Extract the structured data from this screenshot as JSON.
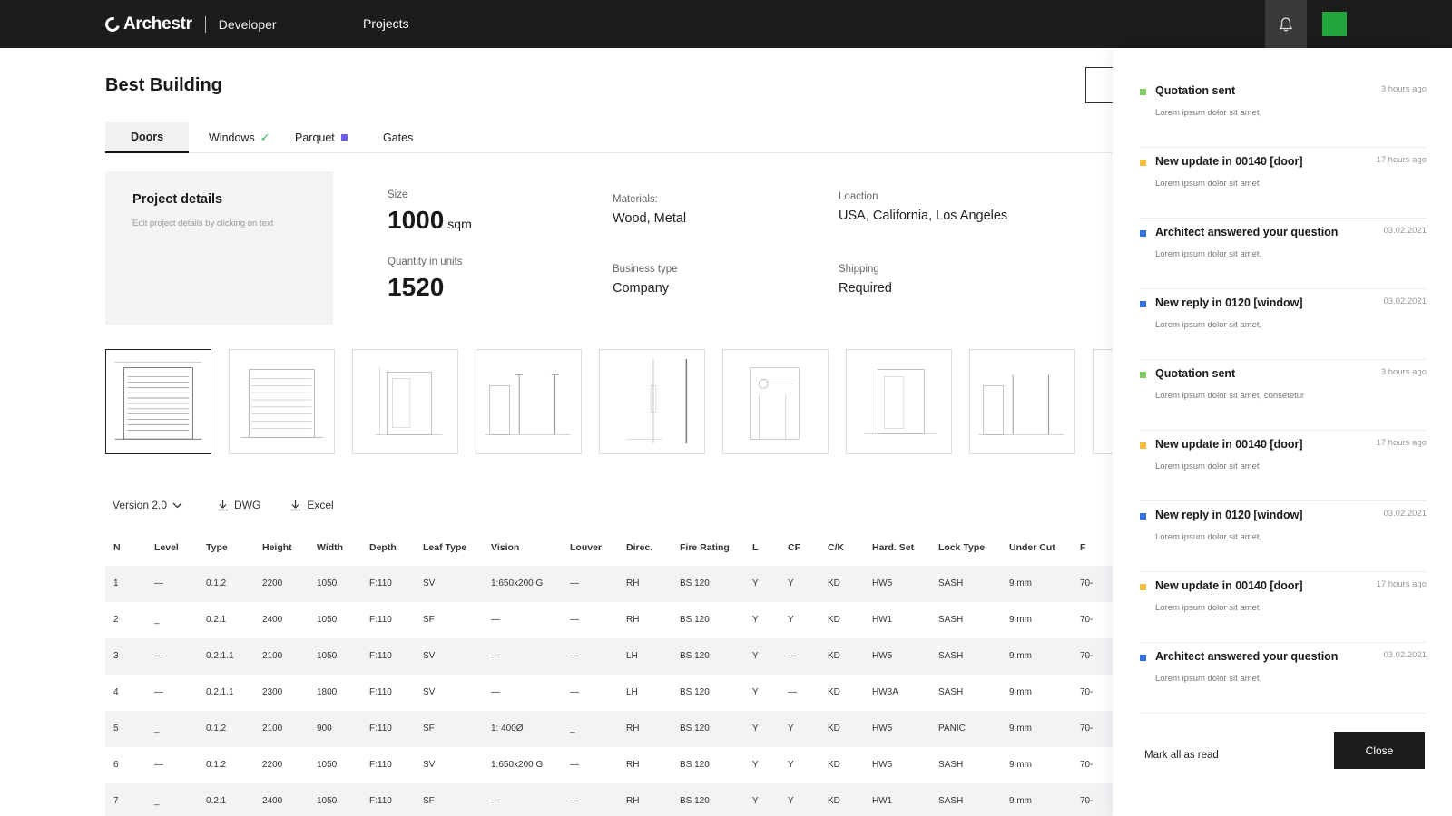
{
  "topbar": {
    "brand": "Archestr",
    "role": "Developer",
    "nav_projects": "Projects",
    "avatar_color": "#22a53a"
  },
  "page": {
    "title": "Best Building"
  },
  "tabs": [
    {
      "label": "Doors",
      "active": true
    },
    {
      "label": "Windows",
      "badge": "check"
    },
    {
      "label": "Parquet",
      "badge": "square"
    },
    {
      "label": "Gates"
    }
  ],
  "details": {
    "title": "Project details",
    "hint": "Edit project details by clicking on text",
    "size_label": "Size",
    "size_value": "1000",
    "size_unit": "sqm",
    "qty_label": "Quantity in units",
    "qty_value": "1520",
    "materials_label": "Materials:",
    "materials_value": "Wood, Metal",
    "business_label": "Business type",
    "business_value": "Company",
    "location_label": "Loaction",
    "location_value": "USA, California, Los Angeles",
    "shipping_label": "Shipping",
    "shipping_value": "Required"
  },
  "toolbar": {
    "version": "Version 2.0",
    "dwg": "DWG",
    "excel": "Excel"
  },
  "table": {
    "columns": [
      "N",
      "Level",
      "Type",
      "Height",
      "Width",
      "Depth",
      "Leaf Type",
      "Vision",
      "Louver",
      "Direc.",
      "Fire Rating",
      "L",
      "CF",
      "C/K",
      "Hard. Set",
      "Lock  Type",
      "Under Cut",
      "F"
    ],
    "rows": [
      [
        "1",
        "—",
        "0.1.2",
        "2200",
        "1050",
        "F:110",
        "SV",
        "1:650x200 G",
        "—",
        "RH",
        "BS 120",
        "Y",
        "Y",
        "KD",
        "HW5",
        "SASH",
        "9 mm",
        "70-"
      ],
      [
        "2",
        "_",
        "0.2.1",
        "2400",
        "1050",
        "F:110",
        "SF",
        "—",
        "—",
        "RH",
        "BS 120",
        "Y",
        "Y",
        "KD",
        "HW1",
        "SASH",
        "9 mm",
        "70-"
      ],
      [
        "3",
        "—",
        "0.2.1.1",
        "2100",
        "1050",
        "F:110",
        "SV",
        "—",
        "—",
        "LH",
        "BS 120",
        "Y",
        "—",
        "KD",
        "HW5",
        "SASH",
        "9 mm",
        "70-"
      ],
      [
        "4",
        "—",
        "0.2.1.1",
        "2300",
        "1800",
        "F:110",
        "SV",
        "—",
        "—",
        "LH",
        "BS 120",
        "Y",
        "—",
        "KD",
        "HW3A",
        "SASH",
        "9 mm",
        "70-"
      ],
      [
        "5",
        "_",
        "0.1.2",
        "2100",
        "900",
        "F:110",
        "SF",
        "1: 400Ø",
        "_",
        "RH",
        "BS 120",
        "Y",
        "Y",
        "KD",
        "HW5",
        "PANIC",
        "9 mm",
        "70-"
      ],
      [
        "6",
        "—",
        "0.1.2",
        "2200",
        "1050",
        "F:110",
        "SV",
        "1:650x200 G",
        "—",
        "RH",
        "BS 120",
        "Y",
        "Y",
        "KD",
        "HW5",
        "SASH",
        "9 mm",
        "70-"
      ],
      [
        "7",
        "_",
        "0.2.1",
        "2400",
        "1050",
        "F:110",
        "SF",
        "—",
        "—",
        "RH",
        "BS 120",
        "Y",
        "Y",
        "KD",
        "HW1",
        "SASH",
        "9 mm",
        "70-"
      ]
    ]
  },
  "notifications": {
    "items": [
      {
        "title": "Quotation sent",
        "time": "3 hours ago",
        "body": "Lorem ipsum dolor sit amet,",
        "color": "#7ccf5f"
      },
      {
        "title": "New update in 00140 [door]",
        "time": "17 hours ago",
        "body": "Lorem ipsum dolor sit amet",
        "color": "#f5bd3c"
      },
      {
        "title": "Architect answered your question",
        "time": "03.02.2021",
        "body": "Lorem ipsum dolor sit amet,",
        "color": "#2f6fe0"
      },
      {
        "title": "New reply in 0120 [window]",
        "time": "03.02.2021",
        "body": "Lorem ipsum dolor sit amet,",
        "color": "#2f6fe0"
      },
      {
        "title": "Quotation sent",
        "time": "3 hours ago",
        "body": "Lorem ipsum dolor sit amet, consetetur",
        "color": "#7ccf5f"
      },
      {
        "title": "New update in 00140 [door]",
        "time": "17 hours ago",
        "body": "Lorem ipsum dolor sit amet",
        "color": "#f5bd3c"
      },
      {
        "title": "New reply in 0120 [window]",
        "time": "03.02.2021",
        "body": "Lorem ipsum dolor sit amet,",
        "color": "#2f6fe0"
      },
      {
        "title": "New update in 00140 [door]",
        "time": "17 hours ago",
        "body": "Lorem ipsum dolor sit amet",
        "color": "#f5bd3c"
      },
      {
        "title": "Architect answered your question",
        "time": "03.02.2021",
        "body": "Lorem ipsum dolor sit amet,",
        "color": "#2f6fe0"
      }
    ],
    "mark_all": "Mark all as read",
    "close": "Close"
  },
  "icons": {
    "bell": "bell-icon",
    "download": "download-icon",
    "chevron": "chevron-down-icon",
    "check": "check-icon"
  }
}
